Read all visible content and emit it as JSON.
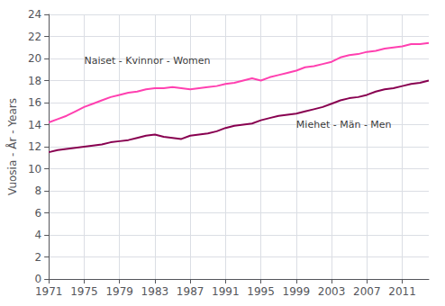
{
  "chart_data": {
    "type": "line",
    "ylabel": "Vuosia - År - Years",
    "x": [
      1971,
      1972,
      1973,
      1974,
      1975,
      1976,
      1977,
      1978,
      1979,
      1980,
      1981,
      1982,
      1983,
      1984,
      1985,
      1986,
      1987,
      1988,
      1989,
      1990,
      1991,
      1992,
      1993,
      1994,
      1995,
      1996,
      1997,
      1998,
      1999,
      2000,
      2001,
      2002,
      2003,
      2004,
      2005,
      2006,
      2007,
      2008,
      2009,
      2010,
      2011,
      2012,
      2013,
      2014
    ],
    "series": [
      {
        "color": "#FF40B0",
        "values": [
          14.2,
          14.5,
          14.8,
          15.2,
          15.6,
          15.9,
          16.2,
          16.5,
          16.7,
          16.9,
          17.0,
          17.2,
          17.3,
          17.3,
          17.4,
          17.3,
          17.2,
          17.3,
          17.4,
          17.5,
          17.7,
          17.8,
          18.0,
          18.2,
          18.0,
          18.3,
          18.5,
          18.7,
          18.9,
          19.2,
          19.3,
          19.5,
          19.7,
          20.1,
          20.3,
          20.4,
          20.6,
          20.7,
          20.9,
          21.0,
          21.1,
          21.3,
          21.3,
          21.4
        ]
      },
      {
        "color": "#880050",
        "values": [
          11.5,
          11.7,
          11.8,
          11.9,
          12.0,
          12.1,
          12.2,
          12.4,
          12.5,
          12.6,
          12.8,
          13.0,
          13.1,
          12.9,
          12.8,
          12.7,
          13.0,
          13.1,
          13.2,
          13.4,
          13.7,
          13.9,
          14.0,
          14.1,
          14.4,
          14.6,
          14.8,
          14.9,
          15.0,
          15.2,
          15.4,
          15.6,
          15.9,
          16.2,
          16.4,
          16.5,
          16.7,
          17.0,
          17.2,
          17.3,
          17.5,
          17.7,
          17.8,
          18.0
        ]
      }
    ],
    "annotations": [
      {
        "text": "Naiset - Kvinnor - Women",
        "x": 1975,
        "y": 19.8
      },
      {
        "text": "Miehet - Män - Men",
        "x": 1999,
        "y": 14.0
      }
    ],
    "xlim": [
      1971,
      2014
    ],
    "xticks": [
      1971,
      1975,
      1979,
      1983,
      1987,
      1991,
      1995,
      1999,
      2003,
      2007,
      2011
    ],
    "ylim": [
      0,
      24
    ],
    "yticks": [
      0,
      2,
      4,
      6,
      8,
      10,
      12,
      14,
      16,
      18,
      20,
      22,
      24
    ],
    "grid": true
  }
}
